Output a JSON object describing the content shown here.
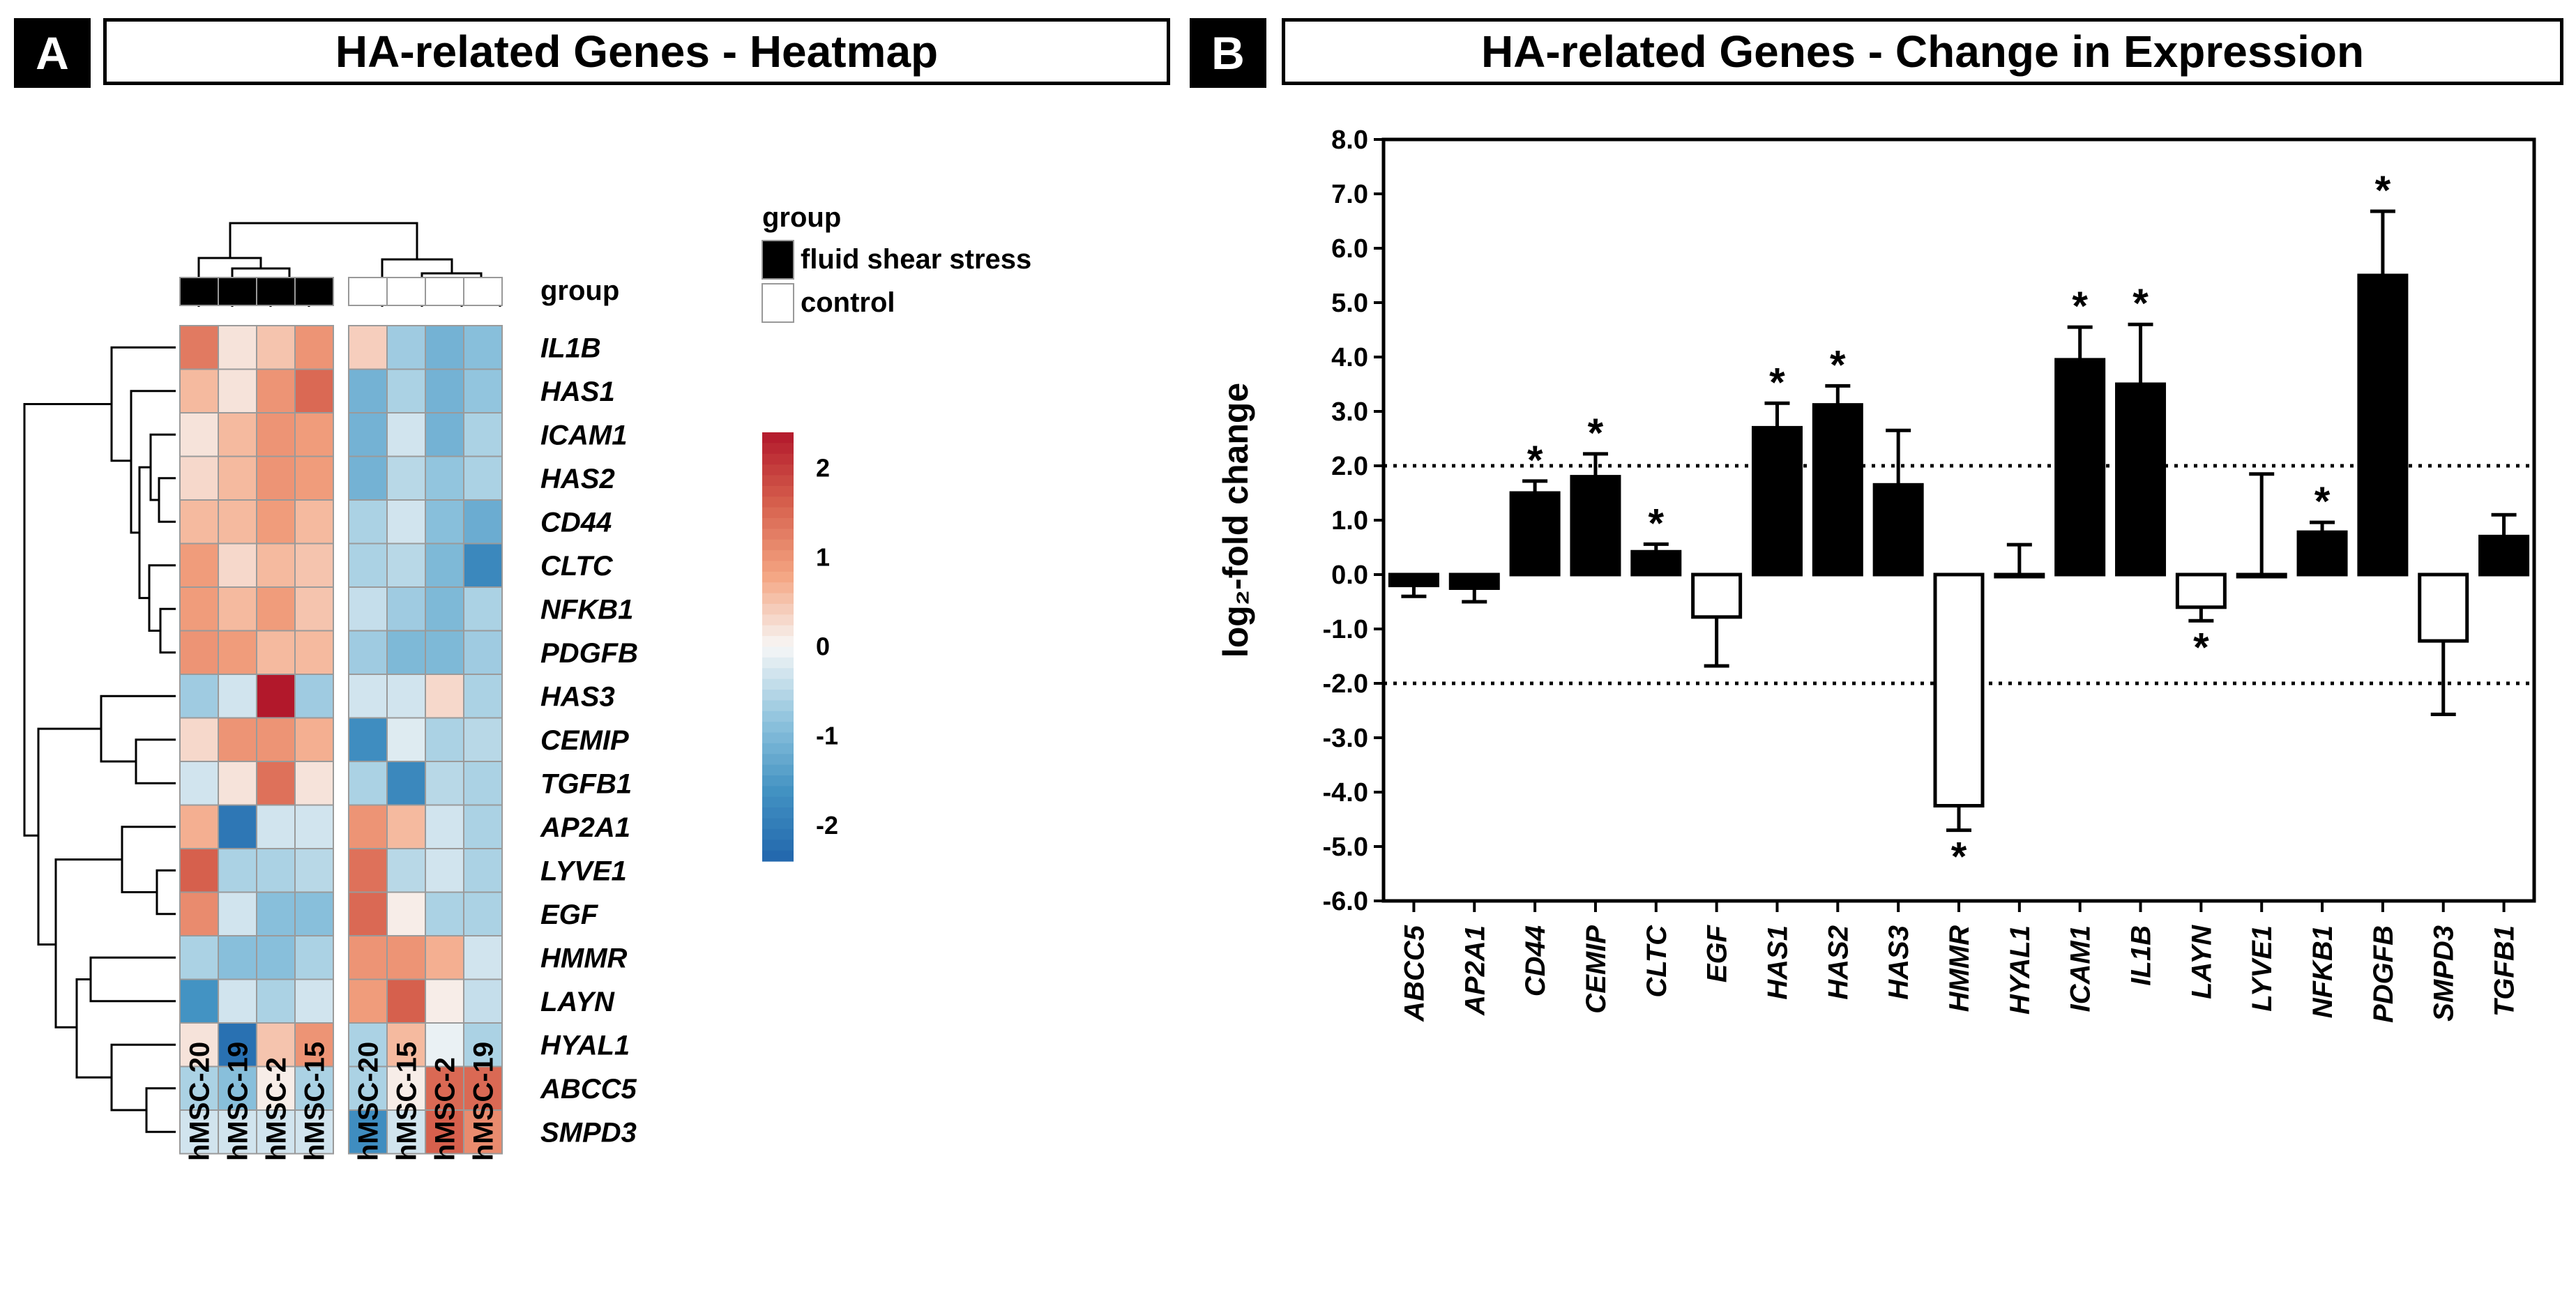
{
  "panel_a": {
    "letter": "A",
    "title": "HA-related Genes - Heatmap"
  },
  "panel_b": {
    "letter": "B",
    "title": "HA-related Genes - Change in Expression"
  },
  "chart_data": [
    {
      "type": "heatmap",
      "title": "HA-related Genes - Heatmap",
      "columns": [
        "hMSC-20",
        "hMSC-19",
        "hMSC-2",
        "hMSC-15",
        "hMSC-20",
        "hMSC-15",
        "hMSC-2",
        "hMSC-19"
      ],
      "column_groups": [
        "fluid shear stress",
        "fluid shear stress",
        "fluid shear stress",
        "fluid shear stress",
        "control",
        "control",
        "control",
        "control"
      ],
      "group_label": "group",
      "legend_title": "group",
      "legend_entries": [
        {
          "label": "fluid shear stress",
          "color": "#000000"
        },
        {
          "label": "control",
          "color": "#ffffff"
        }
      ],
      "colorbar_ticks": [
        "2",
        "1",
        "0",
        "-1",
        "-2"
      ],
      "colorbar_range": [
        -2.4,
        2.4
      ],
      "rows": [
        "IL1B",
        "HAS1",
        "ICAM1",
        "HAS2",
        "CD44",
        "CLTC",
        "NFKB1",
        "PDGFB",
        "HAS3",
        "CEMIP",
        "TGFB1",
        "AP2A1",
        "LYVE1",
        "EGF",
        "HMMR",
        "LAYN",
        "HYAL1",
        "ABCC5",
        "SMPD3"
      ],
      "values": [
        [
          1.3,
          0.2,
          0.5,
          1.0,
          0.4,
          -0.7,
          -1.1,
          -0.9
        ],
        [
          0.6,
          0.2,
          1.0,
          1.5,
          -1.1,
          -0.6,
          -1.1,
          -0.8
        ],
        [
          0.2,
          0.6,
          1.0,
          0.9,
          -1.1,
          -0.3,
          -1.1,
          -0.6
        ],
        [
          0.3,
          0.6,
          1.0,
          0.9,
          -1.1,
          -0.5,
          -0.8,
          -0.6
        ],
        [
          0.6,
          0.6,
          0.9,
          0.6,
          -0.6,
          -0.3,
          -0.9,
          -1.2
        ],
        [
          0.9,
          0.3,
          0.6,
          0.5,
          -0.6,
          -0.5,
          -1.0,
          -1.8
        ],
        [
          0.9,
          0.6,
          0.9,
          0.5,
          -0.4,
          -0.7,
          -1.0,
          -0.6
        ],
        [
          1.0,
          0.9,
          0.6,
          0.6,
          -0.7,
          -1.0,
          -1.0,
          -0.7
        ],
        [
          -0.7,
          -0.3,
          2.4,
          -0.7,
          -0.3,
          -0.3,
          0.3,
          -0.6
        ],
        [
          0.3,
          1.0,
          1.0,
          0.7,
          -1.7,
          -0.2,
          -0.6,
          -0.5
        ],
        [
          -0.3,
          0.2,
          1.4,
          0.2,
          -0.6,
          -1.8,
          -0.5,
          -0.6
        ],
        [
          0.7,
          -2.1,
          -0.3,
          -0.3,
          1.0,
          0.6,
          -0.3,
          -0.6
        ],
        [
          1.6,
          -0.6,
          -0.6,
          -0.5,
          1.4,
          -0.5,
          -0.3,
          -0.6
        ],
        [
          1.1,
          -0.3,
          -0.9,
          -0.9,
          1.5,
          0.1,
          -0.6,
          -0.6
        ],
        [
          -0.6,
          -0.9,
          -0.9,
          -0.6,
          1.0,
          1.0,
          0.7,
          -0.3
        ],
        [
          -1.6,
          -0.3,
          -0.6,
          -0.3,
          0.9,
          1.6,
          0.1,
          -0.4
        ],
        [
          0.2,
          -2.2,
          0.5,
          1.0,
          -0.6,
          0.6,
          -0.1,
          -0.6
        ],
        [
          -0.6,
          -0.9,
          0.1,
          -0.6,
          -0.6,
          0.1,
          1.5,
          1.5
        ],
        [
          -0.3,
          -0.3,
          -0.3,
          -0.3,
          -1.7,
          -0.3,
          1.6,
          1.1
        ]
      ]
    },
    {
      "type": "bar",
      "title": "HA-related Genes - Change in Expression",
      "xlabel": "",
      "ylabel": "log₂-fold change",
      "ylim": [
        -6.0,
        8.0
      ],
      "yticks": [
        "8.0",
        "7.0",
        "6.0",
        "5.0",
        "4.0",
        "3.0",
        "2.0",
        "1.0",
        "0.0",
        "-1.0",
        "-2.0",
        "-3.0",
        "-4.0",
        "-5.0",
        "-6.0"
      ],
      "reference_lines": [
        2.0,
        -2.0
      ],
      "categories": [
        "ABCC5",
        "AP2A1",
        "CD44",
        "CEMIP",
        "CLTC",
        "EGF",
        "HAS1",
        "HAS2",
        "HAS3",
        "HMMR",
        "HYAL1",
        "ICAM1",
        "IL1B",
        "LAYN",
        "LYVE1",
        "NFKB1",
        "PDGFB",
        "SMPD3",
        "TGFB1"
      ],
      "values": [
        -0.2,
        -0.25,
        1.5,
        1.8,
        0.42,
        -0.78,
        2.7,
        3.12,
        1.65,
        -4.25,
        0.0,
        3.95,
        3.5,
        -0.6,
        0.0,
        0.78,
        5.5,
        -1.22,
        0.7
      ],
      "errors": [
        0.2,
        0.25,
        0.22,
        0.42,
        0.14,
        0.9,
        0.45,
        0.35,
        1.0,
        0.45,
        0.55,
        0.6,
        1.1,
        0.25,
        1.85,
        0.18,
        1.18,
        1.35,
        0.4
      ],
      "filled": [
        true,
        true,
        true,
        true,
        true,
        false,
        true,
        true,
        true,
        false,
        false,
        true,
        true,
        false,
        false,
        true,
        true,
        false,
        true
      ],
      "significance_marker": "*",
      "significant": [
        "CD44",
        "CEMIP",
        "CLTC",
        "HAS1",
        "HAS2",
        "HMMR",
        "ICAM1",
        "IL1B",
        "LAYN",
        "NFKB1",
        "PDGFB"
      ]
    }
  ]
}
